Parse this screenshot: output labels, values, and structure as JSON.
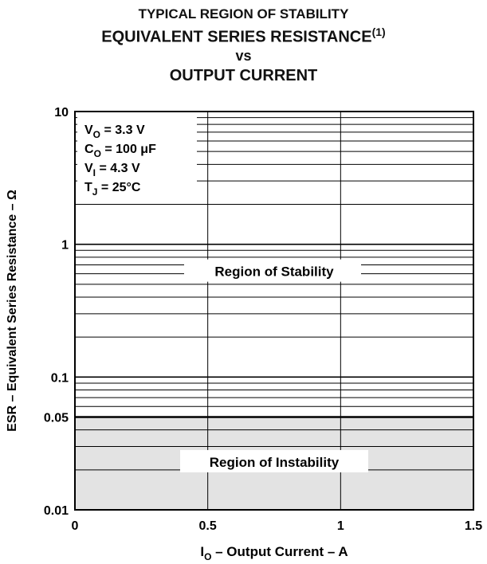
{
  "titles": {
    "line1": "TYPICAL REGION OF STABILITY",
    "line2": "EQUIVALENT SERIES RESISTANCE",
    "line2_note": "(1)",
    "line3": "vs",
    "line4": "OUTPUT CURRENT"
  },
  "chart_data": {
    "type": "area",
    "title": "TYPICAL REGION OF STABILITY EQUIVALENT SERIES RESISTANCE(1) vs OUTPUT CURRENT",
    "xlabel": "IO – Output Current – A",
    "ylabel": "ESR – Equivalent Series Resistance – Ω",
    "x_ticks": [
      "0",
      "0.5",
      "1",
      "1.5"
    ],
    "x_tick_values": [
      0,
      0.5,
      1,
      1.5
    ],
    "y_ticks": [
      "10",
      "1",
      "0.1",
      "0.05",
      "0.01"
    ],
    "y_tick_values": [
      10,
      1,
      0.1,
      0.05,
      0.01
    ],
    "xlim": [
      0,
      1.5
    ],
    "ylim": [
      0.01,
      10
    ],
    "y_scale": "log",
    "grid": true,
    "stability_threshold_esr": 0.05,
    "regions": [
      {
        "name": "Region of Stability",
        "esr_min": 0.05,
        "esr_max": 10,
        "fill": "#ffffff"
      },
      {
        "name": "Region of Instability",
        "esr_min": 0.01,
        "esr_max": 0.05,
        "fill": "#e3e3e3"
      }
    ],
    "conditions": [
      {
        "symbol": "V",
        "sub": "O",
        "value": " = 3.3 V"
      },
      {
        "symbol": "C",
        "sub": "O",
        "value": " = 100 μF"
      },
      {
        "symbol": "V",
        "sub": "I",
        "value": " = 4.3 V"
      },
      {
        "symbol": "T",
        "sub": "J",
        "value": " = 25°C"
      }
    ],
    "xlabel_parts": {
      "symbol": "I",
      "sub": "O",
      "rest": " – Output Current – A"
    }
  },
  "colors": {
    "instability_fill": "#e3e3e3",
    "axis": "#000000",
    "grid": "#000000"
  }
}
